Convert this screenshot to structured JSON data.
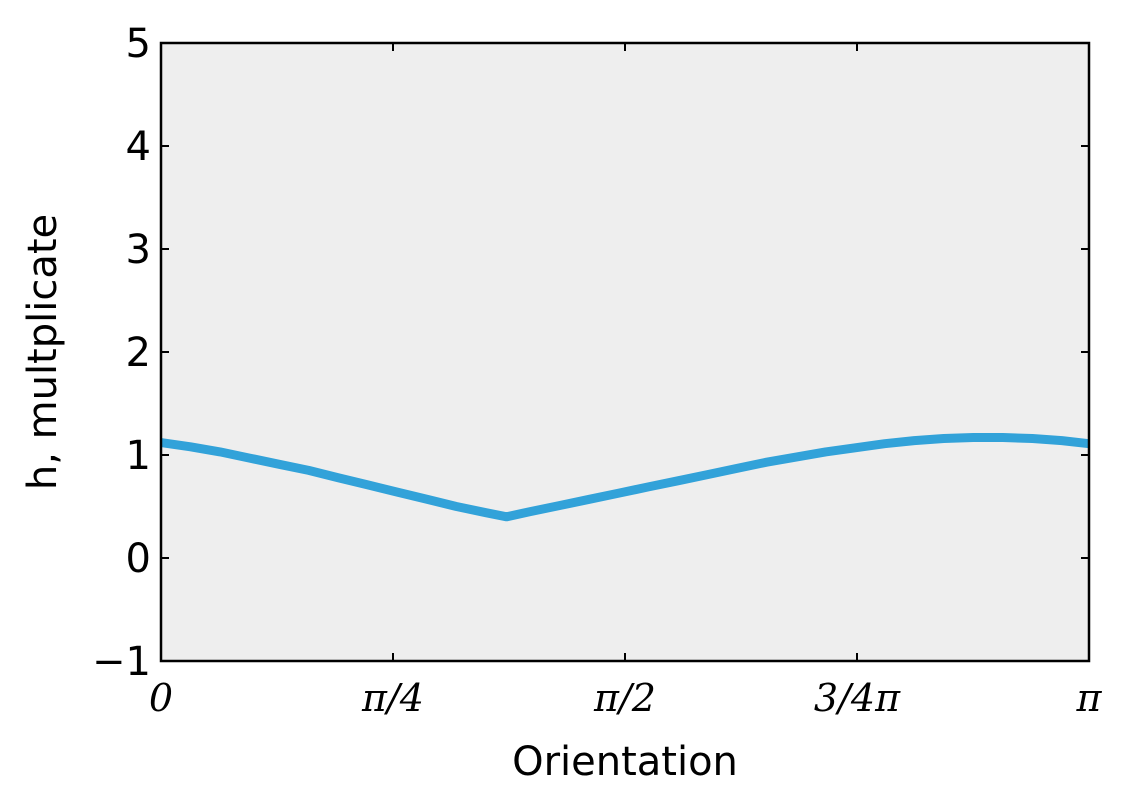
{
  "chart_data": {
    "type": "line",
    "xlabel": "Orientation",
    "ylabel": "h, multplicate",
    "xlim": [
      0,
      3.14159265
    ],
    "ylim": [
      -1,
      5
    ],
    "xticks": [
      {
        "value": 0,
        "label": "0"
      },
      {
        "value": 0.78539816,
        "label": "π/4"
      },
      {
        "value": 1.57079633,
        "label": "π/2"
      },
      {
        "value": 2.35619449,
        "label": "3/4π"
      },
      {
        "value": 3.14159265,
        "label": "π"
      }
    ],
    "yticks": [
      {
        "value": -1,
        "label": "−1"
      },
      {
        "value": 0,
        "label": "0"
      },
      {
        "value": 1,
        "label": "1"
      },
      {
        "value": 2,
        "label": "2"
      },
      {
        "value": 3,
        "label": "3"
      },
      {
        "value": 4,
        "label": "4"
      },
      {
        "value": 5,
        "label": "5"
      }
    ],
    "grid": false,
    "background_color": "#eeeeee",
    "series": [
      {
        "color": "#32a2d9",
        "x": [
          0,
          0.1,
          0.2,
          0.3,
          0.4,
          0.5,
          0.6,
          0.7,
          0.8,
          0.9,
          1.0,
          1.1,
          1.17,
          1.25,
          1.35,
          1.45,
          1.55,
          1.65,
          1.75,
          1.85,
          1.95,
          2.05,
          2.15,
          2.25,
          2.35,
          2.45,
          2.55,
          2.65,
          2.75,
          2.85,
          2.95,
          3.05,
          3.14159
        ],
        "y": [
          1.12,
          1.08,
          1.03,
          0.97,
          0.91,
          0.85,
          0.78,
          0.71,
          0.64,
          0.57,
          0.5,
          0.44,
          0.4,
          0.45,
          0.51,
          0.57,
          0.63,
          0.69,
          0.75,
          0.81,
          0.87,
          0.93,
          0.98,
          1.03,
          1.07,
          1.11,
          1.14,
          1.16,
          1.17,
          1.17,
          1.16,
          1.14,
          1.11
        ]
      }
    ]
  }
}
